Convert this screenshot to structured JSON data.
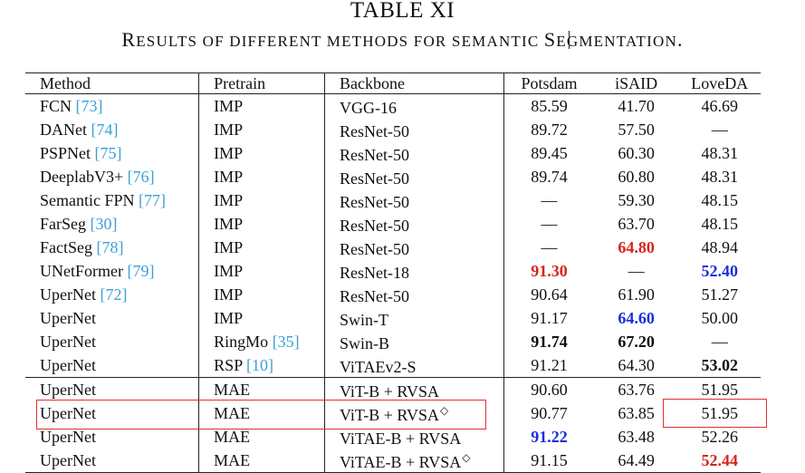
{
  "table_title": "TABLE XI",
  "caption": {
    "part1": "R",
    "part2": "ESULTS OF DIFFERENT METHODS FOR SEMANTIC ",
    "part3": "S",
    "part4": "EGMENTATION",
    "part5": "."
  },
  "columns": [
    "Method",
    "Pretrain",
    "Backbone",
    "Potsdam",
    "iSAID",
    "LoveDA"
  ],
  "rows": [
    {
      "method": "FCN ",
      "ref": "[73]",
      "pretrain": "IMP",
      "pretrain_ref": "",
      "backbone": "VGG-16",
      "diamond": "",
      "potsdam": "85.59",
      "isaid": "41.70",
      "loveda": "46.69",
      "potsdam_style": "",
      "isaid_style": "",
      "loveda_style": ""
    },
    {
      "method": "DANet ",
      "ref": "[74]",
      "pretrain": "IMP",
      "pretrain_ref": "",
      "backbone": "ResNet-50",
      "diamond": "",
      "potsdam": "89.72",
      "isaid": "57.50",
      "loveda": "—",
      "potsdam_style": "",
      "isaid_style": "",
      "loveda_style": ""
    },
    {
      "method": "PSPNet ",
      "ref": "[75]",
      "pretrain": "IMP",
      "pretrain_ref": "",
      "backbone": "ResNet-50",
      "diamond": "",
      "potsdam": "89.45",
      "isaid": "60.30",
      "loveda": "48.31",
      "potsdam_style": "",
      "isaid_style": "",
      "loveda_style": ""
    },
    {
      "method": "DeeplabV3+ ",
      "ref": "[76]",
      "pretrain": "IMP",
      "pretrain_ref": "",
      "backbone": "ResNet-50",
      "diamond": "",
      "potsdam": "89.74",
      "isaid": "60.80",
      "loveda": "48.31",
      "potsdam_style": "",
      "isaid_style": "",
      "loveda_style": ""
    },
    {
      "method": "Semantic FPN ",
      "ref": "[77]",
      "pretrain": "IMP",
      "pretrain_ref": "",
      "backbone": "ResNet-50",
      "diamond": "",
      "potsdam": "—",
      "isaid": "59.30",
      "loveda": "48.15",
      "potsdam_style": "",
      "isaid_style": "",
      "loveda_style": ""
    },
    {
      "method": "FarSeg ",
      "ref": "[30]",
      "pretrain": "IMP",
      "pretrain_ref": "",
      "backbone": "ResNet-50",
      "diamond": "",
      "potsdam": "—",
      "isaid": "63.70",
      "loveda": "48.15",
      "potsdam_style": "",
      "isaid_style": "",
      "loveda_style": ""
    },
    {
      "method": "FactSeg ",
      "ref": "[78]",
      "pretrain": "IMP",
      "pretrain_ref": "",
      "backbone": "ResNet-50",
      "diamond": "",
      "potsdam": "—",
      "isaid": "64.80",
      "loveda": "48.94",
      "potsdam_style": "",
      "isaid_style": "red",
      "loveda_style": ""
    },
    {
      "method": "UNetFormer ",
      "ref": "[79]",
      "pretrain": "IMP",
      "pretrain_ref": "",
      "backbone": "ResNet-18",
      "diamond": "",
      "potsdam": "91.30",
      "isaid": "—",
      "loveda": "52.40",
      "potsdam_style": "red",
      "isaid_style": "",
      "loveda_style": "blue"
    },
    {
      "method": "UperNet ",
      "ref": "[72]",
      "pretrain": "IMP",
      "pretrain_ref": "",
      "backbone": "ResNet-50",
      "diamond": "",
      "potsdam": "90.64",
      "isaid": "61.90",
      "loveda": "51.27",
      "potsdam_style": "",
      "isaid_style": "",
      "loveda_style": ""
    },
    {
      "method": "UperNet",
      "ref": "",
      "pretrain": "IMP",
      "pretrain_ref": "",
      "backbone": "Swin-T",
      "diamond": "",
      "potsdam": "91.17",
      "isaid": "64.60",
      "loveda": "50.00",
      "potsdam_style": "",
      "isaid_style": "blue",
      "loveda_style": ""
    },
    {
      "method": "UperNet",
      "ref": "",
      "pretrain": "RingMo ",
      "pretrain_ref": "[35]",
      "backbone": "Swin-B",
      "diamond": "",
      "potsdam": "91.74",
      "isaid": "67.20",
      "loveda": "—",
      "potsdam_style": "bold",
      "isaid_style": "bold",
      "loveda_style": ""
    },
    {
      "method": "UperNet",
      "ref": "",
      "pretrain": "RSP ",
      "pretrain_ref": "[10]",
      "backbone": "ViTAEv2-S",
      "diamond": "",
      "potsdam": "91.21",
      "isaid": "64.30",
      "loveda": "53.02",
      "potsdam_style": "",
      "isaid_style": "",
      "loveda_style": "bold"
    },
    {
      "method": "UperNet",
      "ref": "",
      "pretrain": "MAE",
      "pretrain_ref": "",
      "backbone": "ViT-B + RVSA",
      "diamond": "",
      "potsdam": "90.60",
      "isaid": "63.76",
      "loveda": "51.95",
      "potsdam_style": "",
      "isaid_style": "",
      "loveda_style": "",
      "sep": true
    },
    {
      "method": "UperNet",
      "ref": "",
      "pretrain": "MAE",
      "pretrain_ref": "",
      "backbone": "ViT-B + RVSA",
      "diamond": "◇",
      "potsdam": "90.77",
      "isaid": "63.85",
      "loveda": "51.95",
      "potsdam_style": "",
      "isaid_style": "",
      "loveda_style": ""
    },
    {
      "method": "UperNet",
      "ref": "",
      "pretrain": "MAE",
      "pretrain_ref": "",
      "backbone": "ViTAE-B + RVSA",
      "diamond": "",
      "potsdam": "91.22",
      "isaid": "63.48",
      "loveda": "52.26",
      "potsdam_style": "blue",
      "isaid_style": "",
      "loveda_style": ""
    },
    {
      "method": "UperNet",
      "ref": "",
      "pretrain": "MAE",
      "pretrain_ref": "",
      "backbone": "ViTAE-B + RVSA",
      "diamond": "◇",
      "potsdam": "91.15",
      "isaid": "64.49",
      "loveda": "52.44",
      "potsdam_style": "",
      "isaid_style": "",
      "loveda_style": "red"
    }
  ],
  "highlight_color": "#e0302f"
}
